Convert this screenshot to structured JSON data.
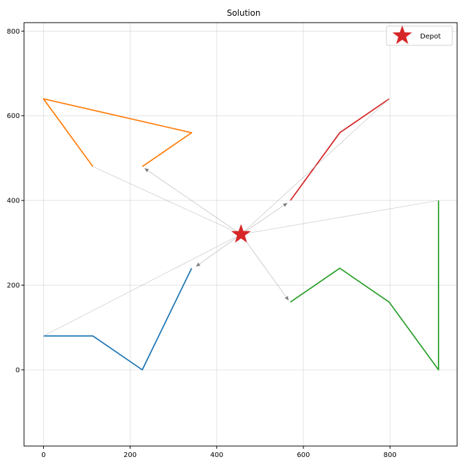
{
  "chart_data": {
    "type": "line",
    "title": "Solution",
    "xlabel": "",
    "ylabel": "",
    "xlim": [
      -45,
      955
    ],
    "ylim": [
      -180,
      820
    ],
    "xticks": [
      0,
      200,
      400,
      600,
      800
    ],
    "yticks": [
      0,
      200,
      400,
      600,
      800
    ],
    "grid": true,
    "legend": {
      "position": "top-right",
      "entries": [
        "Depot"
      ]
    },
    "depot": {
      "label": "Depot",
      "x": 456,
      "y": 320,
      "color": "#d62728"
    },
    "connector_color": "#aaaaaa",
    "arrow_color": "#808080",
    "routes": [
      {
        "color": "#1f77b4",
        "points": [
          [
            0,
            80
          ],
          [
            114,
            80
          ],
          [
            228,
            0
          ],
          [
            342,
            240
          ]
        ],
        "depot_link_from": [
          0,
          80
        ],
        "arrow": [
          [
            456,
            320
          ],
          [
            352,
            244
          ]
        ]
      },
      {
        "color": "#ff7f0e",
        "points": [
          [
            114,
            480
          ],
          [
            0,
            640
          ],
          [
            342,
            560
          ],
          [
            228,
            480
          ]
        ],
        "depot_link_from": [
          114,
          480
        ],
        "arrow": [
          [
            456,
            320
          ],
          [
            233,
            476
          ]
        ]
      },
      {
        "color": "#2ca02c",
        "points": [
          [
            570,
            160
          ],
          [
            684,
            240
          ],
          [
            798,
            160
          ],
          [
            912,
            0
          ],
          [
            912,
            400
          ]
        ],
        "depot_link_from": [
          912,
          400
        ],
        "arrow": [
          [
            456,
            320
          ],
          [
            566,
            164
          ]
        ]
      },
      {
        "color": "#d62728",
        "points": [
          [
            798,
            640
          ],
          [
            684,
            560
          ],
          [
            570,
            400
          ]
        ],
        "depot_link_from": [
          798,
          640
        ],
        "arrow": [
          [
            456,
            320
          ],
          [
            563,
            394
          ]
        ]
      }
    ]
  }
}
